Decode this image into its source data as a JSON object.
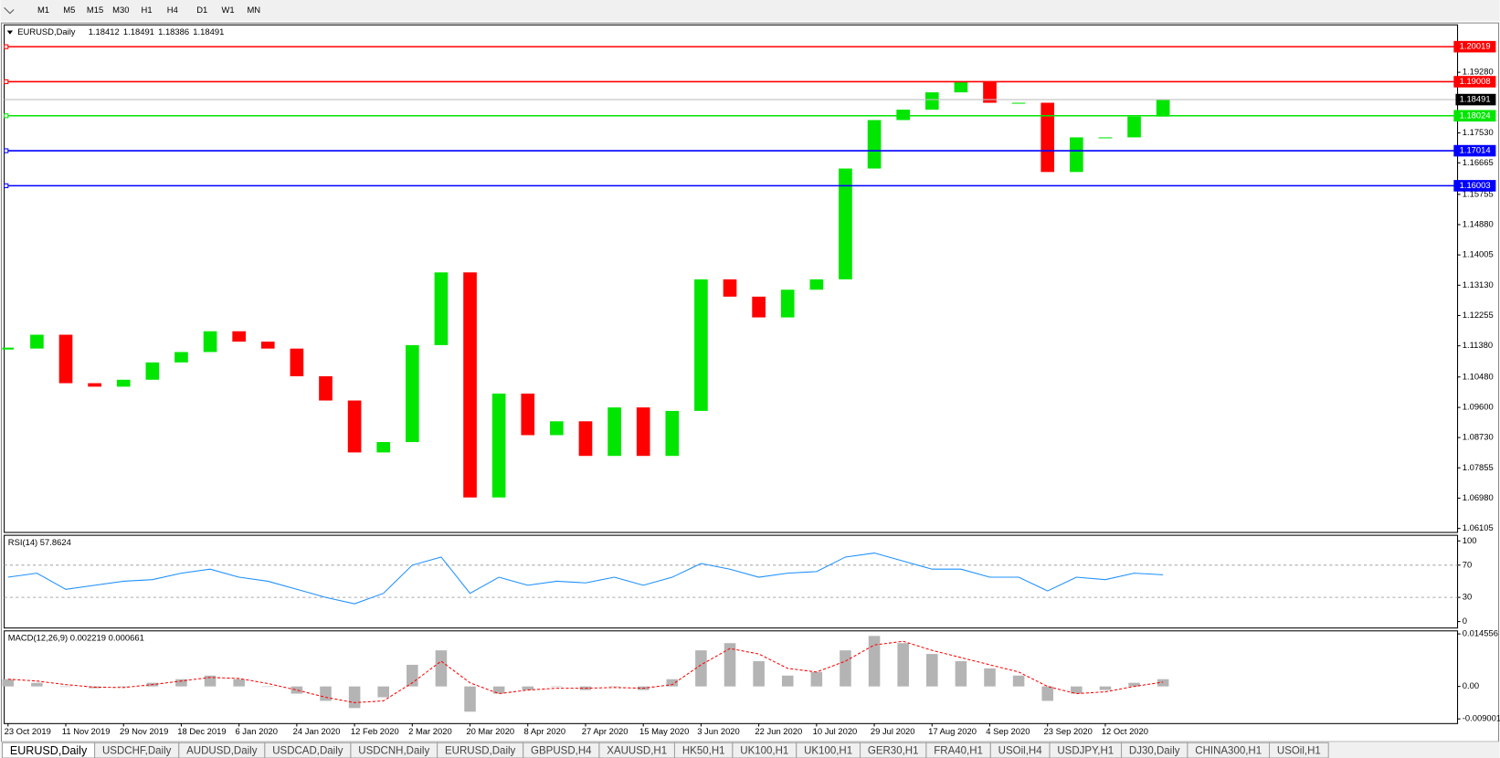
{
  "toolbar": {
    "timeframes": [
      "M1",
      "M5",
      "M15",
      "M30",
      "H1",
      "H4",
      "D1",
      "W1",
      "MN"
    ]
  },
  "chart_data": [
    {
      "type": "candlestick",
      "title": "EURUSD,Daily",
      "ohlc": [
        1.18412,
        1.18491,
        1.18386,
        1.18491
      ],
      "categories": [
        "23 Oct 2019",
        null,
        "11 Nov 2019",
        null,
        "29 Nov 2019",
        null,
        "18 Dec 2019",
        null,
        "6 Jan 2020",
        null,
        "24 Jan 2020",
        null,
        "12 Feb 2020",
        null,
        "2 Mar 2020",
        null,
        "20 Mar 2020",
        null,
        "8 Apr 2020",
        null,
        "27 Apr 2020",
        null,
        "15 May 2020",
        null,
        "3 Jun 2020",
        null,
        "22 Jun 2020",
        null,
        "10 Jul 2020",
        null,
        "29 Jul 2020",
        null,
        "17 Aug 2020",
        null,
        "4 Sep 2020",
        null,
        "23 Sep 2020",
        null,
        "12 Oct 2020",
        null,
        null
      ],
      "values": [
        1.113,
        1.117,
        1.103,
        1.102,
        1.104,
        1.109,
        1.112,
        1.118,
        1.115,
        1.113,
        1.105,
        1.098,
        1.083,
        1.086,
        1.114,
        1.135,
        1.07,
        1.1,
        1.088,
        1.092,
        1.082,
        1.096,
        1.082,
        1.095,
        1.133,
        1.128,
        1.122,
        1.13,
        1.133,
        1.165,
        1.179,
        1.182,
        1.187,
        1.19,
        1.184,
        1.184,
        1.164,
        1.174,
        1.174,
        1.18,
        1.18491
      ],
      "up_color": "#00e600",
      "down_color": "#ff0000",
      "ylim": [
        1.0599,
        1.2065
      ],
      "yticks": [
        {
          "value": 1.1928,
          "label": "1.19280"
        },
        {
          "value": 1.1753,
          "label": "1.17530"
        },
        1.16665,
        1.15755,
        {
          "value": 1.1488,
          "label": "1.14880"
        },
        1.14005,
        {
          "value": 1.1313,
          "label": "1.13130"
        },
        1.12255,
        {
          "value": 1.1138,
          "label": "1.11380"
        },
        {
          "value": 1.1048,
          "label": "1.10480"
        },
        {
          "value": 1.096,
          "label": "1.09600"
        },
        {
          "value": 1.0873,
          "label": "1.08730"
        },
        1.07855,
        {
          "value": 1.0698,
          "label": "1.06980"
        },
        1.06105
      ],
      "levels": [
        {
          "value": 1.20019,
          "color": "#ff0000"
        },
        {
          "value": 1.19008,
          "color": "#ff0000"
        },
        {
          "value": 1.18024,
          "color": "#00e600"
        },
        {
          "value": 1.17014,
          "color": "#0000ff"
        },
        {
          "value": 1.16003,
          "color": "#0000ff"
        }
      ],
      "last_price": 1.18491
    },
    {
      "type": "line",
      "title": "RSI(14) 57.8624",
      "color": "#1e90ff",
      "values": [
        55,
        60,
        40,
        45,
        50,
        52,
        60,
        65,
        55,
        50,
        40,
        30,
        22,
        35,
        70,
        80,
        35,
        55,
        45,
        50,
        48,
        55,
        45,
        55,
        72,
        65,
        55,
        60,
        62,
        80,
        85,
        75,
        65,
        65,
        55,
        55,
        38,
        55,
        52,
        60,
        58
      ],
      "ylim": [
        -8,
        107
      ],
      "yticks": [
        100,
        70,
        30,
        0
      ],
      "levels": [
        70,
        30
      ]
    },
    {
      "type": "bar",
      "title": "MACD(12,26,9) 0.002219 0.000661",
      "color": "#b4b4b4",
      "signal_color": "#ff0000",
      "values": [
        0.002,
        0.001,
        0,
        -0.0005,
        0,
        0.001,
        0.002,
        0.003,
        0.002,
        0,
        -0.002,
        -0.004,
        -0.006,
        -0.003,
        0.006,
        0.01,
        -0.007,
        -0.002,
        -0.001,
        0,
        -0.001,
        0,
        -0.001,
        0.002,
        0.01,
        0.012,
        0.007,
        0.003,
        0.004,
        0.01,
        0.014,
        0.012,
        0.009,
        0.007,
        0.005,
        0.003,
        -0.004,
        -0.002,
        -0.001,
        0.001,
        0.002
      ],
      "signal": [
        0.002,
        0.0015,
        0.0005,
        -0.0002,
        -0.0003,
        0.0005,
        0.0015,
        0.0025,
        0.0022,
        0.0008,
        -0.001,
        -0.003,
        -0.0045,
        -0.004,
        0.001,
        0.007,
        0.001,
        -0.002,
        -0.001,
        -0.0005,
        -0.0005,
        -0.0003,
        -0.0005,
        0.0005,
        0.006,
        0.0105,
        0.009,
        0.005,
        0.004,
        0.007,
        0.0115,
        0.0125,
        0.01,
        0.008,
        0.006,
        0.004,
        0,
        -0.002,
        -0.0015,
        0,
        0.0012
      ],
      "ylim": [
        -0.0103,
        0.0154
      ],
      "yticks": [
        0.014556,
        {
          "value": 0,
          "label": "0.00"
        },
        -0.009001
      ]
    }
  ],
  "tabs": [
    "EURUSD,Daily",
    "USDCHF,Daily",
    "AUDUSD,Daily",
    "USDCAD,Daily",
    "USDCNH,Daily",
    "EURUSD,Daily",
    "GBPUSD,H4",
    "XAUUSD,H1",
    "HK50,H1",
    "UK100,H1",
    "UK100,H1",
    "GER30,H1",
    "FRA40,H1",
    "USOil,H4",
    "USDJPY,H1",
    "DJ30,Daily",
    "CHINA300,H1",
    "USOil,H1"
  ]
}
